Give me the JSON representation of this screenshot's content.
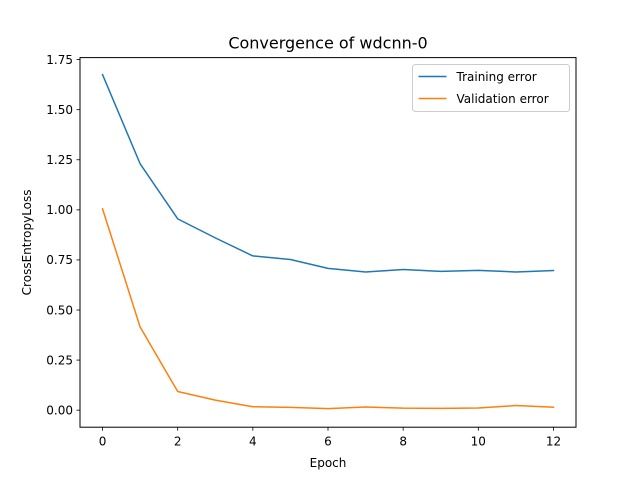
{
  "chart_data": {
    "type": "line",
    "title": "Convergence of wdcnn-0",
    "xlabel": "Epoch",
    "ylabel": "CrossEntropyLoss",
    "x": [
      0,
      1,
      2,
      3,
      4,
      5,
      6,
      7,
      8,
      9,
      10,
      11,
      12
    ],
    "xlim": [
      -0.6,
      12.6
    ],
    "ylim": [
      -0.085,
      1.76
    ],
    "xticks": [
      0,
      2,
      4,
      6,
      8,
      10,
      12
    ],
    "yticks": [
      0.0,
      0.25,
      0.5,
      0.75,
      1.0,
      1.25,
      1.5,
      1.75
    ],
    "xtick_labels": [
      "0",
      "2",
      "4",
      "6",
      "8",
      "10",
      "12"
    ],
    "ytick_labels": [
      "0.00",
      "0.25",
      "0.50",
      "0.75",
      "1.00",
      "1.25",
      "1.50",
      "1.75"
    ],
    "grid": false,
    "legend_position": "top-right",
    "series": [
      {
        "name": "Training error",
        "color": "#1f77b4",
        "values": [
          1.675,
          1.23,
          0.955,
          0.86,
          0.77,
          0.752,
          0.708,
          0.69,
          0.702,
          0.693,
          0.698,
          0.69,
          0.697
        ]
      },
      {
        "name": "Validation error",
        "color": "#ff7f0e",
        "values": [
          1.005,
          0.415,
          0.093,
          0.05,
          0.017,
          0.014,
          0.008,
          0.016,
          0.01,
          0.009,
          0.011,
          0.023,
          0.015
        ]
      }
    ]
  }
}
